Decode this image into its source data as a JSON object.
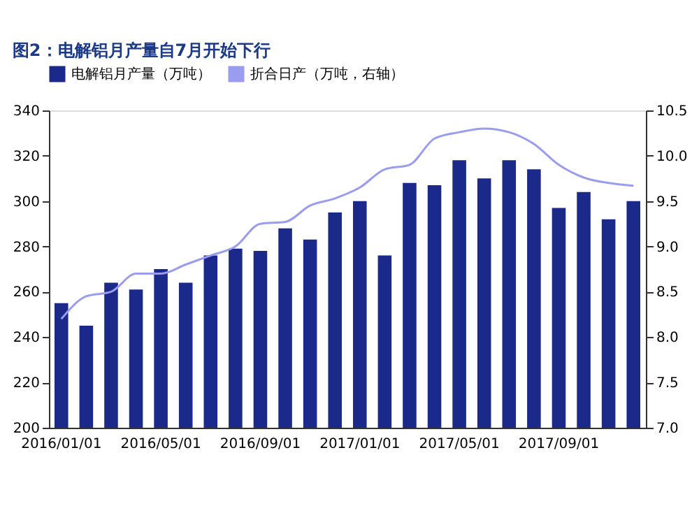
{
  "chart_data": {
    "type": "bar",
    "title": "图2：电解铝月产量自7月开始下行",
    "categories": [
      "2016/01/01",
      null,
      null,
      null,
      "2016/05/01",
      null,
      null,
      null,
      "2016/09/01",
      null,
      null,
      null,
      "2017/01/01",
      null,
      null,
      null,
      "2017/05/01",
      null,
      null,
      null,
      "2017/09/01",
      null,
      null,
      null
    ],
    "series": [
      {
        "name": "电解铝月产量（万吨）",
        "color": "#1b2a8a",
        "values": [
          255,
          245,
          264,
          261,
          270,
          264,
          276,
          279,
          278,
          288,
          283,
          295,
          300,
          276,
          308,
          307,
          318,
          310,
          318,
          314,
          297,
          304,
          292,
          300
        ]
      },
      {
        "name": "折合日产（万吨，右轴）",
        "type": "line",
        "axis": "y2",
        "color": "#9a9cf0",
        "values": [
          8.2,
          8.45,
          8.5,
          8.7,
          8.7,
          8.8,
          8.9,
          9.0,
          9.25,
          9.27,
          9.45,
          9.53,
          9.65,
          9.85,
          9.9,
          10.19,
          10.26,
          10.3,
          10.26,
          10.13,
          9.9,
          9.76,
          9.7,
          9.67
        ]
      }
    ],
    "ylim": [
      200,
      340
    ],
    "yticks": [
      200,
      220,
      240,
      260,
      280,
      300,
      320,
      340
    ],
    "y2lim": [
      7,
      10.5
    ],
    "y2ticks": [
      {
        "value": 7,
        "label": "7.0"
      },
      7.5,
      {
        "value": 8,
        "label": "8.0"
      },
      8.5,
      {
        "value": 9,
        "label": "9.0"
      },
      9.5,
      {
        "value": 10,
        "label": "10.0"
      },
      10.5
    ],
    "grid": false,
    "legend": "top"
  }
}
